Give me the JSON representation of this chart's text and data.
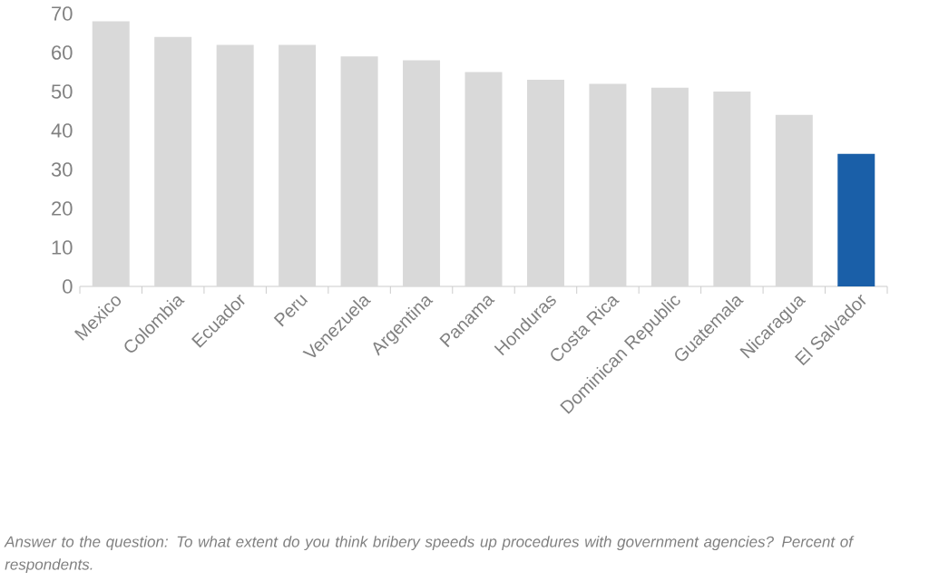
{
  "chart_data": {
    "type": "bar",
    "categories": [
      "Mexico",
      "Colombia",
      "Ecuador",
      "Peru",
      "Venezuela",
      "Argentina",
      "Panama",
      "Honduras",
      "Costa Rica",
      "Dominican Republic",
      "Guatemala",
      "Nicaragua",
      "El Salvador"
    ],
    "values": [
      68,
      64,
      62,
      62,
      59,
      58,
      55,
      53,
      52,
      51,
      50,
      44,
      34
    ],
    "colors": [
      "#d9d9d9",
      "#d9d9d9",
      "#d9d9d9",
      "#d9d9d9",
      "#d9d9d9",
      "#d9d9d9",
      "#d9d9d9",
      "#d9d9d9",
      "#d9d9d9",
      "#d9d9d9",
      "#d9d9d9",
      "#d9d9d9",
      "#1a5fa8"
    ],
    "ylim": [
      0,
      70
    ],
    "yticks": [
      0,
      10,
      20,
      30,
      40,
      50,
      60,
      70
    ],
    "annotations": [
      "Answer to the question: To what extent do you think bribery speeds up procedures with government agencies? Percent of respondents."
    ]
  }
}
